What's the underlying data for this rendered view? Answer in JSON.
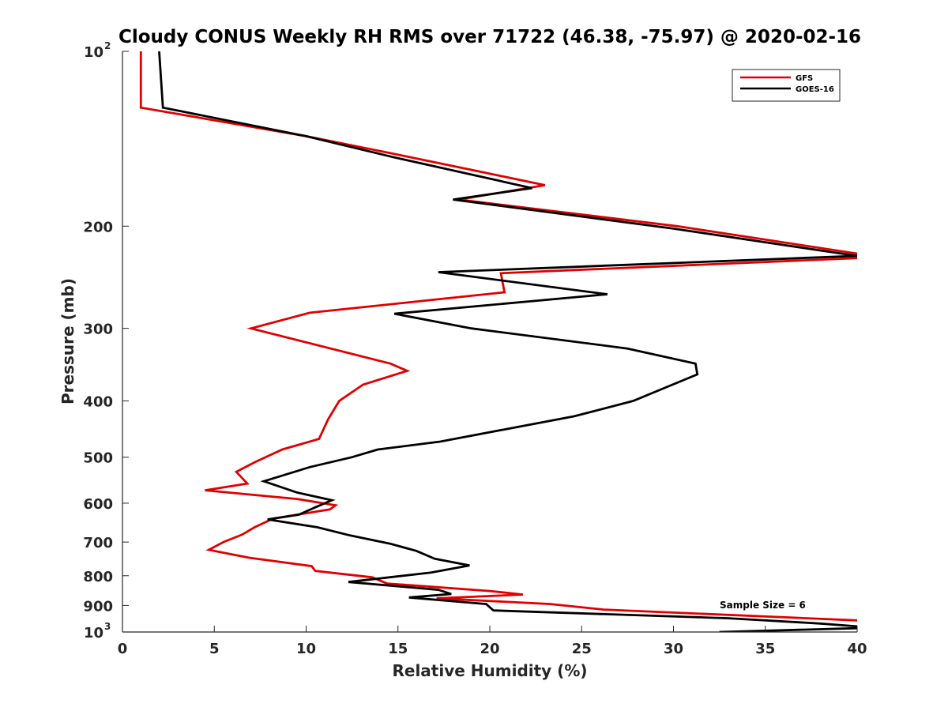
{
  "chart_data": {
    "type": "line",
    "title": "Cloudy CONUS Weekly RH RMS over 71722 (46.38, -75.97) @ 2020-02-16",
    "xlabel": "Relative Humidity (%)",
    "ylabel": "Pressure (mb)",
    "xlim": [
      0,
      40
    ],
    "ylim": [
      100,
      1000
    ],
    "y_scale": "log",
    "y_reversed": true,
    "grid": false,
    "legend_position": "top-right",
    "x_ticks": [
      0,
      5,
      10,
      15,
      20,
      25,
      30,
      35,
      40
    ],
    "x_tick_labels": [
      "0",
      "5",
      "10",
      "15",
      "20",
      "25",
      "30",
      "35",
      "40"
    ],
    "y_ticks": [
      100,
      200,
      300,
      400,
      500,
      600,
      700,
      800,
      900,
      1000
    ],
    "y_tick_labels": [
      {
        "base": "10",
        "exp": "2"
      },
      {
        "base": "200",
        "exp": ""
      },
      {
        "base": "300",
        "exp": ""
      },
      {
        "base": "400",
        "exp": ""
      },
      {
        "base": "500",
        "exp": ""
      },
      {
        "base": "600",
        "exp": ""
      },
      {
        "base": "700",
        "exp": ""
      },
      {
        "base": "800",
        "exp": ""
      },
      {
        "base": "900",
        "exp": ""
      },
      {
        "base": "10",
        "exp": "3"
      }
    ],
    "annotation": "Sample Size = 6",
    "series": [
      {
        "name": "GFS",
        "color": "#e00000",
        "points": [
          [
            1.0,
            100
          ],
          [
            1.0,
            125
          ],
          [
            10.0,
            140
          ],
          [
            14.7,
            150
          ],
          [
            19.0,
            160
          ],
          [
            23.0,
            170
          ],
          [
            18.3,
            180
          ],
          [
            30.2,
            200
          ],
          [
            40.0,
            223
          ],
          [
            40.0,
            227
          ],
          [
            20.6,
            241
          ],
          [
            20.8,
            260
          ],
          [
            10.2,
            282
          ],
          [
            7.0,
            300
          ],
          [
            14.6,
            345
          ],
          [
            15.5,
            355
          ],
          [
            13.1,
            375
          ],
          [
            11.8,
            400
          ],
          [
            11.2,
            430
          ],
          [
            10.7,
            465
          ],
          [
            8.7,
            485
          ],
          [
            7.2,
            510
          ],
          [
            6.2,
            530
          ],
          [
            6.8,
            555
          ],
          [
            4.5,
            570
          ],
          [
            9.5,
            590
          ],
          [
            11.6,
            605
          ],
          [
            11.3,
            615
          ],
          [
            8.2,
            638
          ],
          [
            7.2,
            660
          ],
          [
            6.5,
            680
          ],
          [
            5.5,
            700
          ],
          [
            4.7,
            722
          ],
          [
            6.9,
            745
          ],
          [
            10.3,
            770
          ],
          [
            10.5,
            785
          ],
          [
            13.6,
            805
          ],
          [
            14.4,
            825
          ],
          [
            20.0,
            850
          ],
          [
            21.8,
            862
          ],
          [
            17.1,
            875
          ],
          [
            23.3,
            895
          ],
          [
            26.2,
            915
          ],
          [
            40.0,
            955
          ]
        ]
      },
      {
        "name": "GOES-16",
        "color": "#000000",
        "points": [
          [
            2.0,
            100
          ],
          [
            2.2,
            125
          ],
          [
            10.0,
            140
          ],
          [
            14.7,
            152
          ],
          [
            22.3,
            172
          ],
          [
            18.0,
            180
          ],
          [
            30.0,
            202
          ],
          [
            40.0,
            225
          ],
          [
            17.2,
            240
          ],
          [
            26.4,
            262
          ],
          [
            14.8,
            283
          ],
          [
            19.0,
            300
          ],
          [
            27.5,
            325
          ],
          [
            31.2,
            345
          ],
          [
            31.3,
            360
          ],
          [
            27.8,
            400
          ],
          [
            24.6,
            425
          ],
          [
            17.3,
            470
          ],
          [
            13.9,
            485
          ],
          [
            12.5,
            500
          ],
          [
            10.2,
            520
          ],
          [
            7.7,
            550
          ],
          [
            9.5,
            575
          ],
          [
            11.4,
            593
          ],
          [
            10.5,
            610
          ],
          [
            9.6,
            628
          ],
          [
            7.9,
            640
          ],
          [
            10.6,
            660
          ],
          [
            12.4,
            682
          ],
          [
            14.6,
            705
          ],
          [
            16.0,
            725
          ],
          [
            17.0,
            748
          ],
          [
            18.9,
            768
          ],
          [
            16.8,
            790
          ],
          [
            12.3,
            820
          ],
          [
            17.2,
            846
          ],
          [
            17.9,
            860
          ],
          [
            15.6,
            872
          ],
          [
            19.8,
            895
          ],
          [
            20.2,
            918
          ],
          [
            33.0,
            947
          ],
          [
            38.0,
            967
          ],
          [
            40.0,
            978
          ],
          [
            40.0,
            985
          ],
          [
            32.5,
            1000
          ]
        ]
      }
    ]
  }
}
